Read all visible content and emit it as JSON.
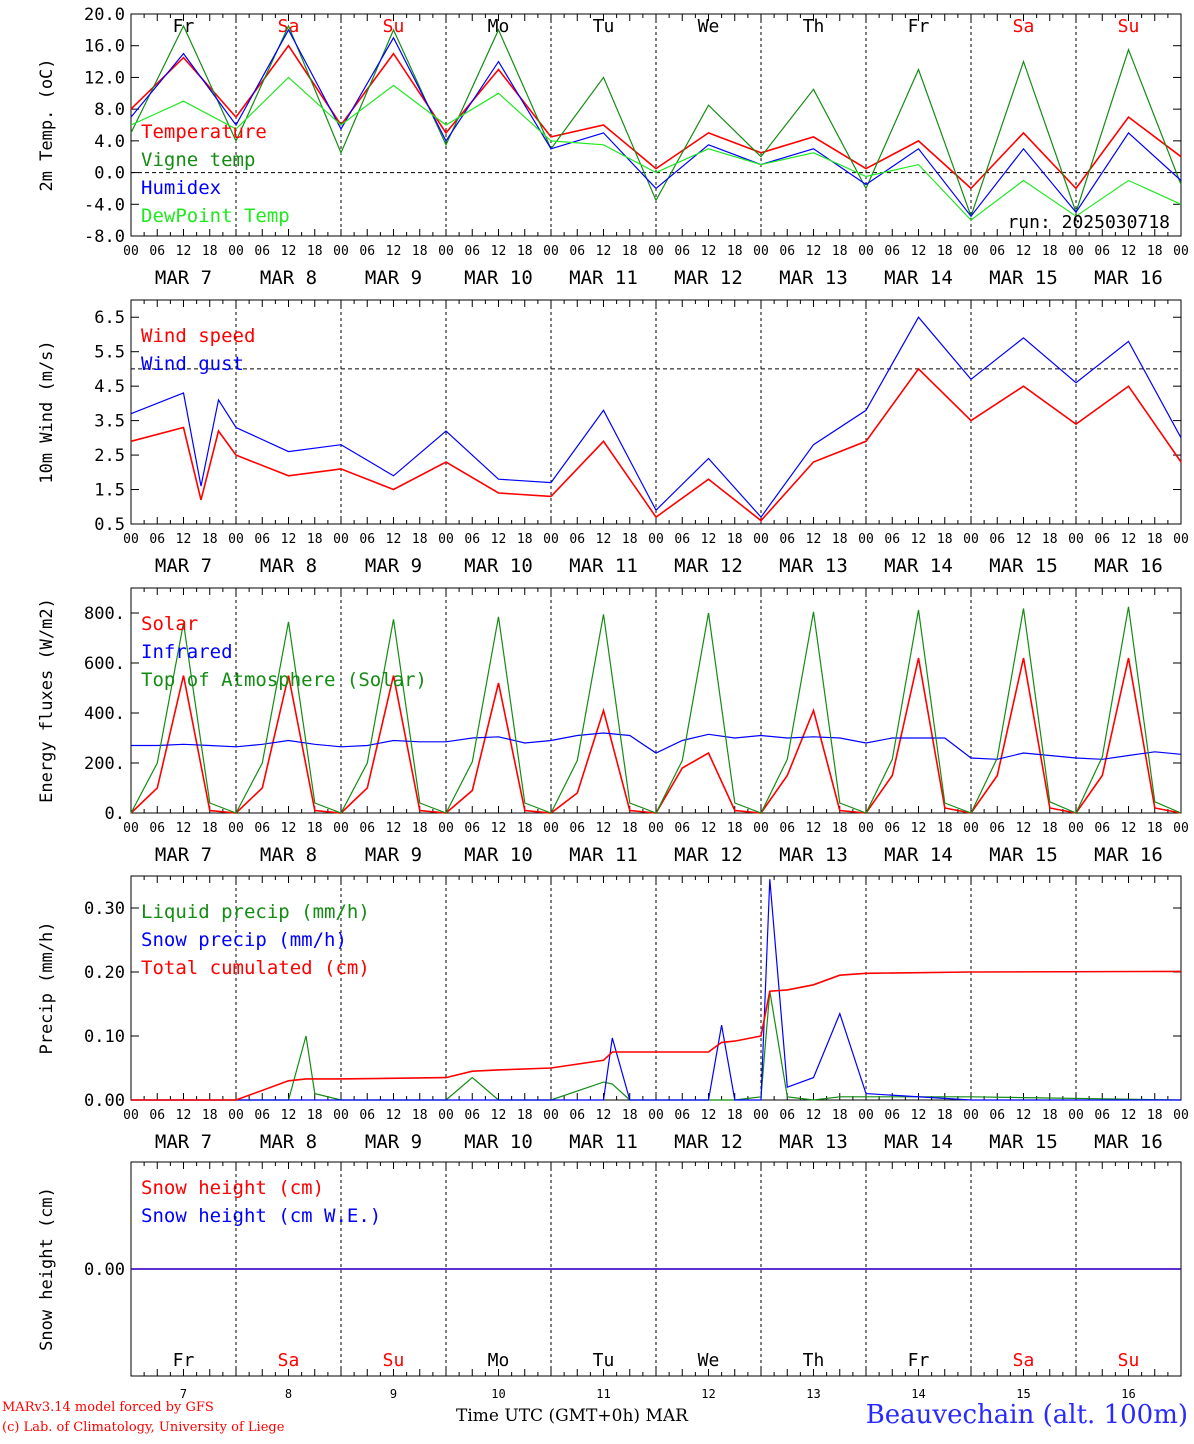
{
  "colors": {
    "red": "#ff0000",
    "green": "#138c13",
    "blue": "#0000ff",
    "lightgreen": "#22e822",
    "black": "#000000"
  },
  "days": [
    {
      "abbr": "Fr",
      "date": "7",
      "month_label": "MAR  7",
      "weekend": false
    },
    {
      "abbr": "Sa",
      "date": "8",
      "month_label": "MAR  8",
      "weekend": true
    },
    {
      "abbr": "Su",
      "date": "9",
      "month_label": "MAR  9",
      "weekend": true
    },
    {
      "abbr": "Mo",
      "date": "10",
      "month_label": "MAR 10",
      "weekend": false
    },
    {
      "abbr": "Tu",
      "date": "11",
      "month_label": "MAR 11",
      "weekend": false
    },
    {
      "abbr": "We",
      "date": "12",
      "month_label": "MAR 12",
      "weekend": false
    },
    {
      "abbr": "Th",
      "date": "13",
      "month_label": "MAR 13",
      "weekend": false
    },
    {
      "abbr": "Fr",
      "date": "14",
      "month_label": "MAR 14",
      "weekend": false
    },
    {
      "abbr": "Sa",
      "date": "15",
      "month_label": "MAR 15",
      "weekend": true
    },
    {
      "abbr": "Su",
      "date": "16",
      "month_label": "MAR 16",
      "weekend": true
    }
  ],
  "hour_ticks": [
    "00",
    "06",
    "12",
    "18"
  ],
  "last_hour_tick": "00",
  "footer": {
    "credit1": "MARv3.14 model forced by GFS",
    "credit2": "(c) Lab. of Climatology, University of Liege",
    "xlabel": "Time UTC (GMT+0h) MAR",
    "station": "Beauvechain (alt. 100m)"
  },
  "chart_data": [
    {
      "type": "line",
      "ylabel": "2m Temp. (oC)",
      "ylim": [
        -8,
        20
      ],
      "yticks": [
        "20.0",
        "16.0",
        "12.0",
        "8.0",
        "4.0",
        "0.0",
        "-4.0",
        "-8.0"
      ],
      "ref_line": 0,
      "run_label": "run: 2025030718",
      "x": [
        0,
        12,
        24,
        36,
        48,
        60,
        72,
        84,
        96,
        108,
        120,
        132,
        144,
        156,
        168,
        180,
        192,
        204,
        216,
        228,
        240
      ],
      "series": [
        {
          "name": "Temperature",
          "color": "red",
          "values": [
            8.0,
            14.5,
            7.0,
            16.0,
            6.0,
            15.0,
            5.0,
            13.0,
            4.5,
            6.0,
            0.5,
            5.0,
            2.5,
            4.5,
            0.5,
            4.0,
            -2.0,
            5.0,
            -2.0,
            7.0,
            2.0
          ]
        },
        {
          "name": "Vigne temp",
          "color": "green",
          "values": [
            5.0,
            18.5,
            4.0,
            18.5,
            2.5,
            18.0,
            3.5,
            18.0,
            3.0,
            12.0,
            -3.5,
            8.5,
            2.0,
            10.5,
            -2.0,
            13.0,
            -5.5,
            14.0,
            -5.0,
            15.5,
            -1.5
          ]
        },
        {
          "name": "Humidex",
          "color": "blue",
          "values": [
            7.0,
            15.0,
            6.0,
            18.0,
            5.5,
            17.0,
            4.0,
            14.0,
            3.0,
            5.0,
            -2.0,
            3.5,
            1.0,
            3.0,
            -1.5,
            3.0,
            -5.5,
            3.0,
            -5.0,
            5.0,
            -1.0
          ]
        },
        {
          "name": "DewPoint Temp",
          "color": "lightgreen",
          "values": [
            6.0,
            9.0,
            5.5,
            12.0,
            6.0,
            11.0,
            6.0,
            10.0,
            4.0,
            3.5,
            0.0,
            3.0,
            1.0,
            2.5,
            -0.5,
            1.0,
            -6.0,
            -1.0,
            -5.5,
            -1.0,
            -4.0
          ]
        }
      ]
    },
    {
      "type": "line",
      "ylabel": "10m Wind (m/s)",
      "ylim": [
        0.5,
        7.0
      ],
      "yticks": [
        "6.5",
        "5.5",
        "4.5",
        "3.5",
        "2.5",
        "1.5",
        "0.5"
      ],
      "ref_line": 5.0,
      "x": [
        0,
        12,
        16,
        20,
        24,
        36,
        48,
        60,
        72,
        84,
        96,
        108,
        120,
        132,
        144,
        156,
        168,
        180,
        192,
        204,
        216,
        228,
        240
      ],
      "series": [
        {
          "name": "Wind speed",
          "color": "red",
          "values": [
            2.9,
            3.3,
            1.2,
            3.2,
            2.5,
            1.9,
            2.1,
            1.5,
            2.3,
            1.4,
            1.3,
            2.9,
            0.7,
            1.8,
            0.6,
            2.3,
            2.9,
            5.0,
            3.5,
            4.5,
            3.4,
            4.5,
            2.3
          ]
        },
        {
          "name": "Wind gust",
          "color": "blue",
          "values": [
            3.7,
            4.3,
            1.6,
            4.1,
            3.3,
            2.6,
            2.8,
            1.9,
            3.2,
            1.8,
            1.7,
            3.8,
            0.9,
            2.4,
            0.7,
            2.8,
            3.8,
            6.5,
            4.7,
            5.9,
            4.6,
            5.8,
            3.0
          ]
        }
      ]
    },
    {
      "type": "line",
      "ylabel": "Energy fluxes (W/m2)",
      "ylim": [
        0,
        900
      ],
      "yticks": [
        "800.",
        "600.",
        "400.",
        "200.",
        "0."
      ],
      "x": [
        0,
        6,
        12,
        18,
        24,
        30,
        36,
        42,
        48,
        54,
        60,
        66,
        72,
        78,
        84,
        90,
        96,
        102,
        108,
        114,
        120,
        126,
        132,
        138,
        144,
        150,
        156,
        162,
        168,
        174,
        180,
        186,
        192,
        198,
        204,
        210,
        216,
        222,
        228,
        234,
        240
      ],
      "series": [
        {
          "name": "Solar",
          "color": "red",
          "values": [
            0,
            100,
            550,
            10,
            0,
            100,
            550,
            10,
            0,
            100,
            550,
            10,
            0,
            90,
            520,
            10,
            0,
            80,
            410,
            10,
            0,
            180,
            240,
            10,
            0,
            150,
            410,
            10,
            0,
            150,
            620,
            20,
            0,
            150,
            620,
            20,
            0,
            150,
            620,
            20,
            0
          ]
        },
        {
          "name": "Infrared",
          "color": "blue",
          "values": [
            270,
            270,
            275,
            270,
            265,
            275,
            290,
            275,
            265,
            270,
            290,
            285,
            285,
            300,
            305,
            280,
            290,
            310,
            320,
            310,
            240,
            290,
            315,
            300,
            310,
            300,
            305,
            300,
            280,
            300,
            300,
            300,
            220,
            215,
            240,
            230,
            220,
            215,
            230,
            245,
            235
          ]
        },
        {
          "name": "Top of Atmosphere (Solar)",
          "color": "green",
          "values": [
            0,
            200,
            760,
            40,
            0,
            200,
            765,
            40,
            0,
            200,
            775,
            40,
            0,
            205,
            785,
            40,
            0,
            210,
            795,
            40,
            0,
            210,
            800,
            40,
            0,
            215,
            805,
            40,
            0,
            215,
            812,
            40,
            0,
            220,
            818,
            45,
            0,
            225,
            825,
            45,
            0
          ]
        }
      ]
    },
    {
      "type": "line",
      "ylabel": "Precip (mm/h)",
      "ylim": [
        0,
        0.35
      ],
      "yticks": [
        "0.30",
        "0.20",
        "0.10",
        "0.00"
      ],
      "x": [
        0,
        24,
        36,
        40,
        42,
        48,
        72,
        78,
        84,
        96,
        108,
        110,
        114,
        132,
        135,
        138,
        144,
        146,
        150,
        156,
        162,
        168,
        192,
        240
      ],
      "series": [
        {
          "name": "Liquid precip (mm/h)",
          "color": "green",
          "values": [
            0,
            0,
            0,
            0.1,
            0.01,
            0,
            0,
            0.035,
            0,
            0,
            0.028,
            0.025,
            0,
            0,
            0,
            0,
            0.005,
            0.17,
            0.005,
            0,
            0.005,
            0.005,
            0.005,
            0
          ]
        },
        {
          "name": "Snow precip (mm/h)",
          "color": "blue",
          "values": [
            0,
            0,
            0,
            0,
            0,
            0,
            0,
            0,
            0,
            0,
            0,
            0.097,
            0,
            0,
            0.117,
            0,
            0,
            0.345,
            0.02,
            0.035,
            0.135,
            0.01,
            0,
            0
          ]
        },
        {
          "name": "Total cumulated (cm)",
          "color": "red",
          "values": [
            0,
            0,
            0.03,
            0.033,
            0.033,
            0.033,
            0.035,
            0.045,
            0.047,
            0.05,
            0.062,
            0.075,
            0.075,
            0.075,
            0.09,
            0.092,
            0.1,
            0.17,
            0.172,
            0.18,
            0.195,
            0.198,
            0.2,
            0.201
          ]
        }
      ]
    },
    {
      "type": "line",
      "ylabel": "Snow height (cm)",
      "ylim": [
        -1,
        1
      ],
      "yticks": [
        "0.00"
      ],
      "x": [
        0,
        240
      ],
      "series": [
        {
          "name": "Snow height (cm)",
          "color": "red",
          "values": [
            0,
            0
          ]
        },
        {
          "name": "Snow height (cm W.E.)",
          "color": "blue",
          "values": [
            0,
            0
          ]
        }
      ]
    }
  ]
}
